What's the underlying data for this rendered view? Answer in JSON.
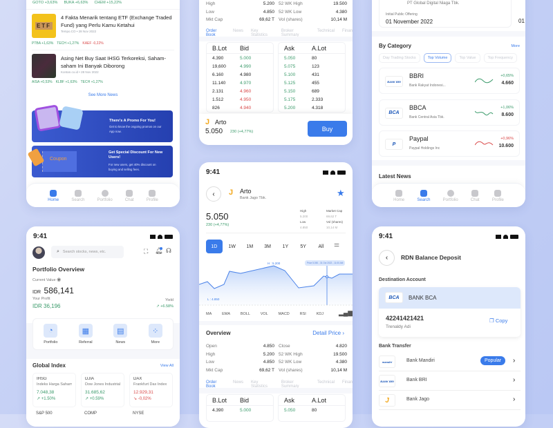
{
  "home_feed": {
    "top_tickers": [
      {
        "t": "GOTO +3,63%",
        "c": "g"
      },
      {
        "t": "BUKA +6,63%",
        "c": "g"
      },
      {
        "t": "CHEM +15,22%",
        "c": "g"
      }
    ],
    "news": [
      {
        "title": "4 Fakta Menarik tentang ETF (Exchange Traded Fund) yang Perlu Kamu Ketahui",
        "source": "Tempo.CO",
        "date": "28 Nov 2022",
        "image_text": "ETF",
        "tickers": [
          {
            "t": "PTBA +1,63%",
            "c": "g"
          },
          {
            "t": "TECH +1,27%",
            "c": "g"
          },
          {
            "t": "KAEF -0,22%",
            "c": "r"
          }
        ]
      },
      {
        "title": "Asing Net Buy Saat IHSG Terkoreksi, Saham-saham Ini Banyak Diborong",
        "source": "Kontan.co.id",
        "date": "28 Nov 2022",
        "tickers": [
          {
            "t": "AISA +0,53%",
            "c": "g"
          },
          {
            "t": "KLBF +1,63%",
            "c": "g"
          },
          {
            "t": "TECH +1,27%",
            "c": "g"
          }
        ]
      }
    ],
    "see_more": "See More News",
    "promos": [
      {
        "title": "There's A Promo For You!",
        "desc": "Get to know the ongoing promos on our App now."
      },
      {
        "title": "Get Special Discount For New Users!",
        "desc": "For new users, get 40% discount on buying and selling fees.",
        "image_text": "Coupon"
      }
    ]
  },
  "nav": [
    "Home",
    "Search",
    "Portfolio",
    "Chat",
    "Profile"
  ],
  "stock_top": {
    "stats": [
      [
        "High",
        "5.200",
        "52 WK High",
        "19.500"
      ],
      [
        "Low",
        "4.850",
        "52 WK Low",
        "4.380"
      ],
      [
        "Mkt Cap",
        "69,62 T",
        "Vol (shares)",
        "10,14 M"
      ]
    ],
    "order_book": [
      [
        "4.390",
        "5.000",
        "g",
        "5.050",
        "80"
      ],
      [
        "19,600",
        "4.990",
        "g",
        "5.075",
        "123"
      ],
      [
        "6.160",
        "4.980",
        "n",
        "5.100",
        "431"
      ],
      [
        "11.140",
        "4.970",
        "g",
        "5.125",
        "455"
      ],
      [
        "2.131",
        "4.960",
        "r",
        "5.150",
        "689"
      ],
      [
        "1.512",
        "4.950",
        "r",
        "5.175",
        "2.333"
      ],
      [
        "826",
        "4.940",
        "r",
        "5.200",
        "4.318"
      ]
    ],
    "name": "Arto",
    "price": "5.050",
    "change": "230 (+4,77%)",
    "buy": "Buy"
  },
  "tabs": [
    "Order Book",
    "News",
    "Key Statistics",
    "Broker Summary",
    "Technical",
    "Finan"
  ],
  "ob_headers": [
    "B.Lot",
    "Bid",
    "Ask",
    "A.Lot"
  ],
  "search": {
    "ipo_company": "PT Global Digital Niaga Tbk.",
    "ipo_label": "Initial Public Offering",
    "ipo_date": "01 November 2022",
    "ipo_date2": "01",
    "category_title": "By Category",
    "more": "More",
    "chips": [
      "Day Trading Stocks",
      "Top Volume",
      "Top Value",
      "Top Frequency"
    ],
    "items": [
      {
        "code": "BBRI",
        "name": "Bank Rakyat Indonesi...",
        "change": "+0,65%",
        "price": "4.660",
        "c": "g",
        "logo": "BANK BRI"
      },
      {
        "code": "BBCA",
        "name": "Bank Central Asia Tbk.",
        "change": "+1,06%",
        "price": "8.600",
        "c": "g",
        "logo": "BCA"
      },
      {
        "code": "Paypal",
        "name": "Paypal Holdings Inc",
        "change": "+0,96%",
        "price": "10.600",
        "c": "r",
        "logo": "P"
      }
    ],
    "latest_news": "Latest News"
  },
  "portfolio": {
    "time": "9:41",
    "search_placeholder": "Search stocks, news, etc.",
    "title": "Portfolio Overview",
    "current_value_label": "Current Value",
    "currency": "IDR",
    "value": "586,141",
    "profit_label": "Your Profit",
    "profit": "IDR 36,196",
    "yield_label": "Yield",
    "yield": "+6.58%",
    "menu": [
      "Portfolio",
      "Referral",
      "News",
      "More"
    ],
    "global_title": "Global Index",
    "view_all": "View All",
    "indices": [
      {
        "code": "IHSG",
        "name": "Indeks Harga Saham...",
        "value": "7.048,38",
        "change": "+1.50%",
        "c": "g"
      },
      {
        "code": "DJIA",
        "name": "Dow Jones Industrial...",
        "value": "31.685,62",
        "change": "+0.59%",
        "c": "g"
      },
      {
        "code": "DAX",
        "name": "Frankfurt Dax Index",
        "value": "12.929,31",
        "change": "-0,02%",
        "c": "r"
      }
    ],
    "indices_row2": [
      "S&P 500",
      "COMP",
      "NYSE"
    ]
  },
  "detail": {
    "time": "9:41",
    "name": "Arto",
    "company": "Bank Jago Tbk.",
    "price": "5.050",
    "change": "230 (+4,77%)",
    "mini": [
      [
        "High",
        "5.200",
        "Market Cap",
        "69,62 T"
      ],
      [
        "Low",
        "4.850",
        "Vol (shares)",
        "10,14 M"
      ]
    ],
    "timeframes": [
      "1D",
      "1W",
      "1M",
      "3M",
      "1Y",
      "5Y",
      "All"
    ],
    "chart_high": "H : 5.200",
    "chart_low": "L : 4.850",
    "tooltip": "Price 5.050 - 31 Oct 2022 - 11:00 AM",
    "indicators": [
      "MA",
      "EMA",
      "BOLL",
      "VOL",
      "MACD",
      "RSI",
      "KDJ"
    ],
    "overview": "Overview",
    "detail_price": "Detail Price",
    "stats": [
      [
        "Open",
        "4.850",
        "Close",
        "4.820"
      ],
      [
        "High",
        "5.200",
        "52 WK High",
        "19.500"
      ],
      [
        "Low",
        "4.850",
        "52 WK Low",
        "4.380"
      ],
      [
        "Mkt Cap",
        "69,62 T",
        "Vol (shares)",
        "10,14 M"
      ]
    ],
    "ob_row": [
      "4.390",
      "5.000",
      "5.050",
      "80"
    ]
  },
  "rdn": {
    "time": "9:41",
    "title": "RDN Balance Deposit",
    "dest_label": "Destination Account",
    "bank": "BANK BCA",
    "bank_logo": "BCA",
    "account": "42241421421",
    "holder": "Trenaldy Adi",
    "copy": "Copy",
    "transfer_label": "Bank Transfer",
    "banks": [
      {
        "name": "Bank Mandiri",
        "badge": "Popular",
        "logo": "mandiri"
      },
      {
        "name": "Bank BRI",
        "logo": "BANK BRI"
      },
      {
        "name": "Bank Jago",
        "logo": "J"
      }
    ]
  },
  "colors": {
    "accent": "#3a7bea",
    "up": "#3a9a6a",
    "down": "#d94848",
    "logo_jago": "#f2a81d"
  }
}
